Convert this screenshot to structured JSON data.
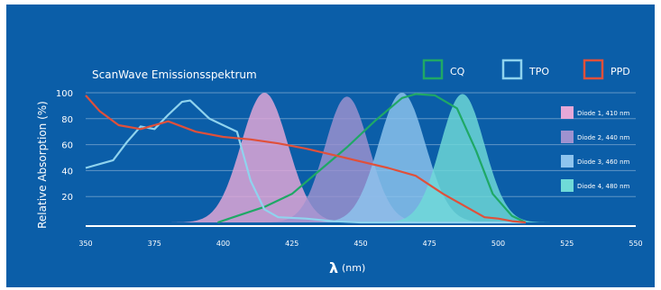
{
  "chart_data": {
    "type": "area",
    "title": "ScanWave Emissionsspektrum",
    "xlabel_symbol": "λ",
    "xlabel_unit": "(nm)",
    "ylabel": "Relative Absorption (%)",
    "xlim": [
      350,
      550
    ],
    "ylim": [
      0,
      100
    ],
    "x_ticks": [
      "350",
      "375",
      "400",
      "425",
      "450",
      "475",
      "500",
      "525",
      "550"
    ],
    "y_ticks": [
      "20",
      "40",
      "60",
      "80",
      "100"
    ],
    "grid": true,
    "legend_top": [
      {
        "name": "CQ",
        "color": "#1fa866"
      },
      {
        "name": "TPO",
        "color": "#8fd3ee"
      },
      {
        "name": "PPD",
        "color": "#e0503a"
      }
    ],
    "legend_right": [
      {
        "name": "Diode 1, 410 nm",
        "color": "#e6a8d8"
      },
      {
        "name": "Diode 2, 440 nm",
        "color": "#9f92d0"
      },
      {
        "name": "Diode 3, 460 nm",
        "color": "#8ec4ee"
      },
      {
        "name": "Diode 4, 480 nm",
        "color": "#6fdad8"
      }
    ],
    "series": [
      {
        "name": "CQ",
        "kind": "line",
        "color": "#1fa866",
        "points": [
          [
            398,
            0
          ],
          [
            405,
            5
          ],
          [
            415,
            12
          ],
          [
            425,
            22
          ],
          [
            435,
            40
          ],
          [
            445,
            58
          ],
          [
            455,
            78
          ],
          [
            465,
            96
          ],
          [
            470,
            99
          ],
          [
            477,
            98
          ],
          [
            485,
            88
          ],
          [
            492,
            55
          ],
          [
            498,
            22
          ],
          [
            505,
            5
          ],
          [
            510,
            0
          ]
        ]
      },
      {
        "name": "TPO",
        "kind": "line",
        "color": "#8fd3ee",
        "points": [
          [
            350,
            42
          ],
          [
            360,
            48
          ],
          [
            365,
            62
          ],
          [
            370,
            74
          ],
          [
            375,
            72
          ],
          [
            380,
            83
          ],
          [
            385,
            93
          ],
          [
            388,
            94
          ],
          [
            395,
            80
          ],
          [
            400,
            75
          ],
          [
            405,
            70
          ],
          [
            410,
            32
          ],
          [
            415,
            10
          ],
          [
            420,
            4
          ],
          [
            430,
            3
          ],
          [
            440,
            1
          ],
          [
            450,
            0
          ],
          [
            510,
            0
          ]
        ]
      },
      {
        "name": "PPD",
        "kind": "line",
        "color": "#e0503a",
        "points": [
          [
            350,
            98
          ],
          [
            355,
            86
          ],
          [
            362,
            75
          ],
          [
            370,
            72
          ],
          [
            380,
            78
          ],
          [
            390,
            70
          ],
          [
            400,
            66
          ],
          [
            410,
            64
          ],
          [
            420,
            61
          ],
          [
            430,
            57
          ],
          [
            440,
            52
          ],
          [
            450,
            47
          ],
          [
            460,
            42
          ],
          [
            470,
            36
          ],
          [
            480,
            22
          ],
          [
            490,
            10
          ],
          [
            495,
            4
          ],
          [
            500,
            3
          ],
          [
            505,
            1
          ],
          [
            510,
            0
          ]
        ]
      },
      {
        "name": "Diode 1, 410 nm",
        "kind": "area",
        "color": "#e6a8d8",
        "center": 415,
        "width": 8.5,
        "peak": 100
      },
      {
        "name": "Diode 2, 440 nm",
        "kind": "area",
        "color": "#9f92d0",
        "center": 445,
        "width": 8,
        "peak": 97
      },
      {
        "name": "Diode 3, 460 nm",
        "kind": "area",
        "color": "#8ec4ee",
        "center": 465,
        "width": 8.5,
        "peak": 100
      },
      {
        "name": "Diode 4, 480 nm",
        "kind": "area",
        "color": "#6fdad8",
        "center": 487,
        "width": 8,
        "peak": 99
      }
    ]
  }
}
